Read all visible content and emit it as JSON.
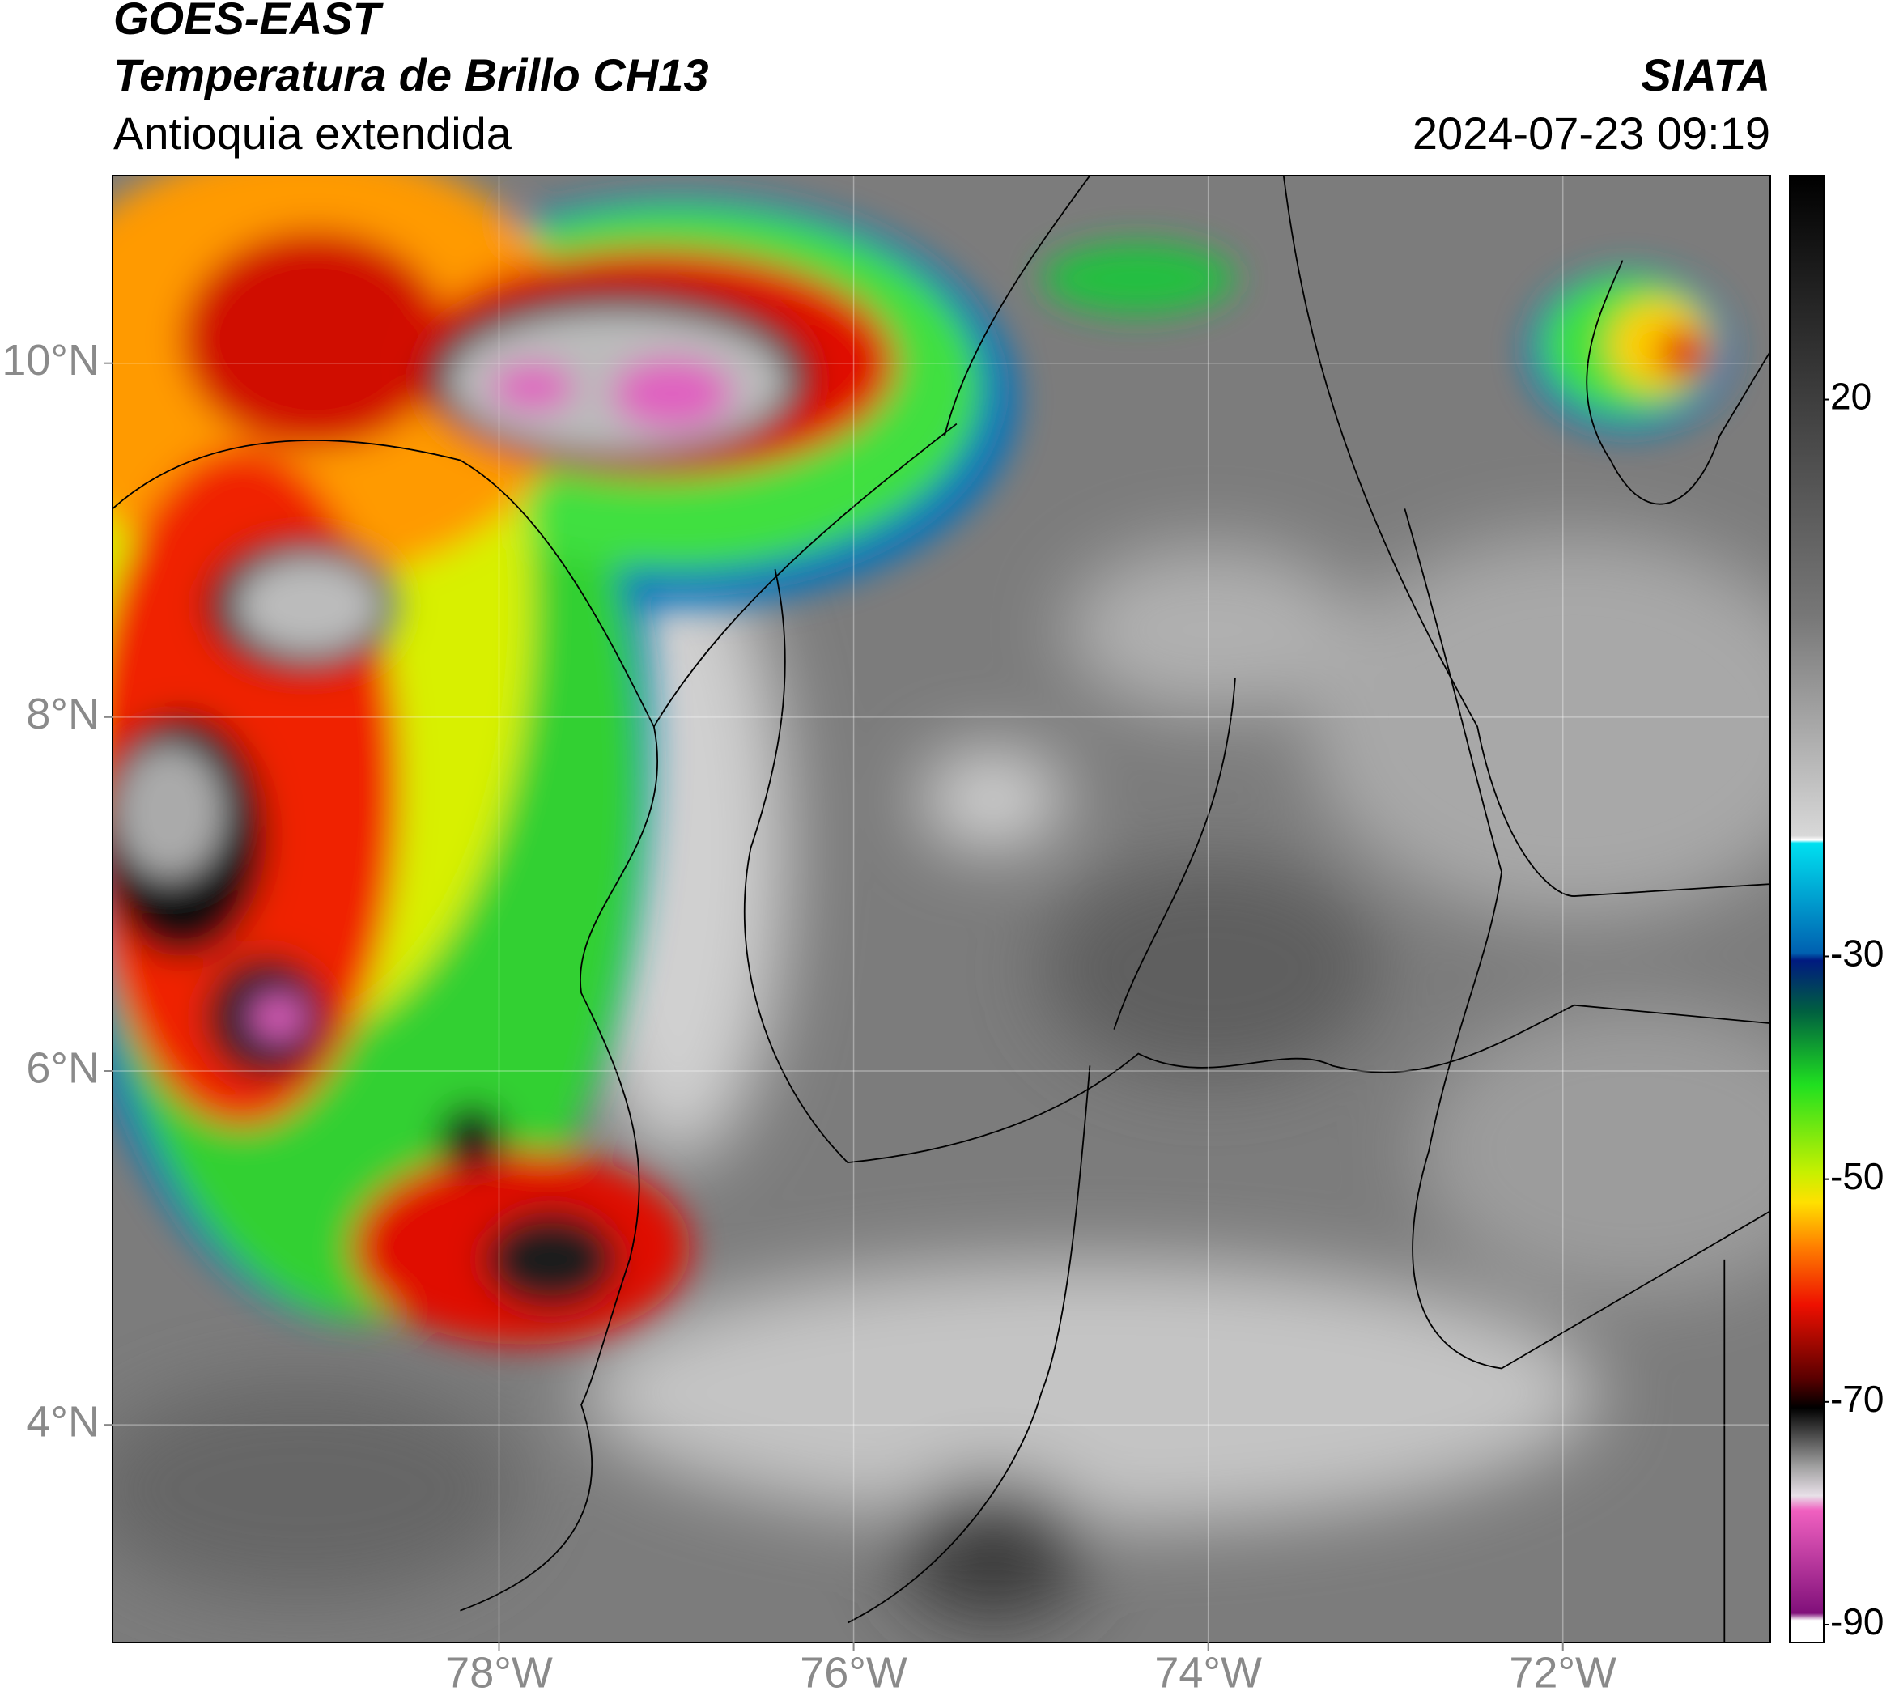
{
  "header": {
    "title": "GOES-EAST",
    "subtitle": "Temperatura de Brillo CH13",
    "region": "Antioquia extendida",
    "source": "SIATA",
    "datetime": "2024-07-23 09:19"
  },
  "map": {
    "xlim": [
      -80.18,
      -70.83
    ],
    "ylim": [
      2.77,
      11.06
    ],
    "xticks": [
      {
        "value": -78,
        "label": "78°W"
      },
      {
        "value": -76,
        "label": "76°W"
      },
      {
        "value": -74,
        "label": "74°W"
      },
      {
        "value": -72,
        "label": "72°W"
      }
    ],
    "yticks": [
      {
        "value": 4,
        "label": "4°N"
      },
      {
        "value": 6,
        "label": "6°N"
      },
      {
        "value": 8,
        "label": "8°N"
      },
      {
        "value": 10,
        "label": "10°N"
      }
    ],
    "grid": true
  },
  "colorbar": {
    "lim": [
      -91.6,
      40.1
    ],
    "ticks": [
      20,
      -30,
      -50,
      -70,
      -90
    ]
  }
}
